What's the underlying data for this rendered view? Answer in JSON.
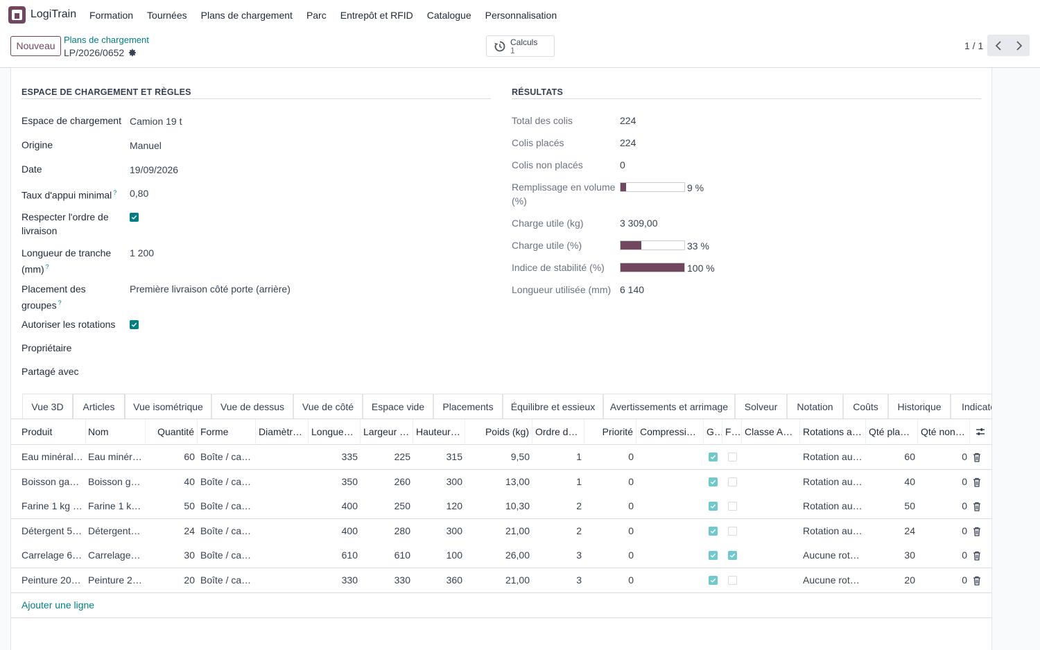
{
  "navbar": {
    "brand": "LogiTrain",
    "menu": [
      "Formation",
      "Tournées",
      "Plans de chargement",
      "Parc",
      "Entrepôt et RFID",
      "Catalogue",
      "Personnalisation"
    ]
  },
  "control_panel": {
    "new_button": "Nouveau",
    "breadcrumb_parent": "Plans de chargement",
    "record_name": "LP/2026/0652",
    "stat_button": {
      "label": "Calculs",
      "value": "1"
    },
    "pager": "1 / 1"
  },
  "left_section": {
    "title": "ESPACE DE CHARGEMENT ET RÈGLES",
    "fields": {
      "loading_space": {
        "label": "Espace de chargement",
        "value": "Camion 19 t"
      },
      "origin": {
        "label": "Origine",
        "value": "Manuel"
      },
      "date": {
        "label": "Date",
        "value": "19/09/2026"
      },
      "min_support": {
        "label": "Taux d'appui minimal",
        "help": "?",
        "value": "0,80"
      },
      "delivery_order": {
        "label_line1": "Respecter l'ordre de",
        "label_line2": "livraison",
        "checked": true
      },
      "slice_length": {
        "label_line1": "Longueur de tranche",
        "label_line2": "(mm)",
        "help": "?",
        "value": "1 200"
      },
      "group_placement": {
        "label_line1": "Placement des",
        "label_line2": "groupes",
        "help": "?",
        "value": "Première livraison côté porte (arrière)"
      },
      "allow_rotations": {
        "label": "Autoriser les rotations",
        "checked": true
      },
      "owner": {
        "label": "Propriétaire",
        "value": ""
      },
      "shared_with": {
        "label": "Partagé avec",
        "value": ""
      }
    }
  },
  "right_section": {
    "title": "RÉSULTATS",
    "fields": {
      "total": {
        "label": "Total des colis",
        "value": "224"
      },
      "placed": {
        "label": "Colis placés",
        "value": "224"
      },
      "not_placed": {
        "label": "Colis non placés",
        "value": "0"
      },
      "volume_fill": {
        "label_line1": "Remplissage en volume",
        "label_line2": "(%)",
        "percent": 9,
        "text": "9 %"
      },
      "payload_kg": {
        "label": "Charge utile (kg)",
        "value": "3 309,00"
      },
      "payload_pct": {
        "label": "Charge utile (%)",
        "percent": 33,
        "text": "33 %"
      },
      "stability": {
        "label": "Indice de stabilité (%)",
        "percent": 100,
        "text": "100 %"
      },
      "length_used": {
        "label": "Longueur utilisée (mm)",
        "value": "6 140"
      }
    }
  },
  "tabs": [
    "Vue 3D",
    "Articles",
    "Vue isométrique",
    "Vue de dessus",
    "Vue de côté",
    "Espace vide",
    "Placements",
    "Équilibre et essieux",
    "Avertissements et arrimage",
    "Solveur",
    "Notation",
    "Coûts",
    "Historique",
    "Indicate"
  ],
  "active_tab": "Articles",
  "table": {
    "headers": [
      "Produit",
      "Nom",
      "Quantité",
      "Forme",
      "Diamètr…",
      "Longueu…",
      "Largeur …",
      "Hauteur …",
      "Poids (kg)",
      "Ordre de…",
      "Priorité",
      "Compressio…",
      "G…",
      "F…",
      "Classe ADR",
      "Rotations a…",
      "Qté placée",
      "Qté non …"
    ],
    "rows": [
      {
        "produit": "Eau minéral…",
        "nom": "Eau minér…",
        "quantite": "60",
        "forme": "Boîte / car…",
        "diametre": "",
        "longueur": "335",
        "largeur": "225",
        "hauteur": "315",
        "poids": "9,50",
        "ordre": "1",
        "priorite": "0",
        "g": true,
        "f": false,
        "adr": "",
        "rotations": "Rotation au …",
        "qte_placee": "60",
        "qte_non": "0"
      },
      {
        "produit": "Boisson gaz…",
        "nom": "Boisson g…",
        "quantite": "40",
        "forme": "Boîte / car…",
        "diametre": "",
        "longueur": "350",
        "largeur": "260",
        "hauteur": "300",
        "poids": "13,00",
        "ordre": "1",
        "priorite": "0",
        "g": true,
        "f": false,
        "adr": "",
        "rotations": "Rotation au …",
        "qte_placee": "40",
        "qte_non": "0"
      },
      {
        "produit": "Farine 1 kg …",
        "nom": "Farine 1 k…",
        "quantite": "50",
        "forme": "Boîte / car…",
        "diametre": "",
        "longueur": "400",
        "largeur": "250",
        "hauteur": "120",
        "poids": "10,30",
        "ordre": "2",
        "priorite": "0",
        "g": true,
        "f": false,
        "adr": "",
        "rotations": "Rotation au …",
        "qte_placee": "50",
        "qte_non": "0"
      },
      {
        "produit": "Détergent 5 …",
        "nom": "Détergent …",
        "quantite": "24",
        "forme": "Boîte / car…",
        "diametre": "",
        "longueur": "400",
        "largeur": "280",
        "hauteur": "300",
        "poids": "21,00",
        "ordre": "2",
        "priorite": "0",
        "g": true,
        "f": false,
        "adr": "",
        "rotations": "Rotation au …",
        "qte_placee": "24",
        "qte_non": "0"
      },
      {
        "produit": "Carrelage 6…",
        "nom": "Carrelage …",
        "quantite": "30",
        "forme": "Boîte / car…",
        "diametre": "",
        "longueur": "610",
        "largeur": "610",
        "hauteur": "100",
        "poids": "26,00",
        "ordre": "3",
        "priorite": "0",
        "g": true,
        "f": true,
        "adr": "",
        "rotations": "Aucune rota…",
        "qte_placee": "30",
        "qte_non": "0"
      },
      {
        "produit": "Peinture 20 …",
        "nom": "Peinture 2…",
        "quantite": "20",
        "forme": "Boîte / car…",
        "diametre": "",
        "longueur": "330",
        "largeur": "330",
        "hauteur": "360",
        "poids": "21,00",
        "ordre": "3",
        "priorite": "0",
        "g": true,
        "f": false,
        "adr": "",
        "rotations": "Aucune rota…",
        "qte_placee": "20",
        "qte_non": "0"
      }
    ],
    "add_line": "Ajouter une ligne"
  },
  "colors": {
    "brand": "#71465f",
    "link": "#017e84",
    "checkbox": "#017e84"
  }
}
